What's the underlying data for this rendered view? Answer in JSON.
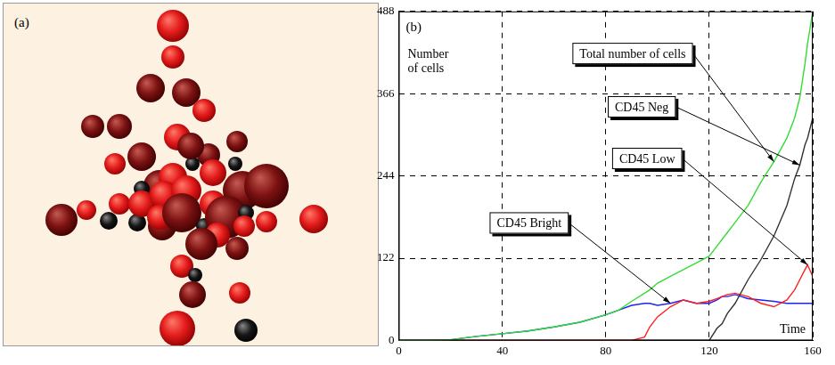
{
  "image_panel": {
    "label": "(a)"
  },
  "chart_data": {
    "type": "line",
    "label": "(b)",
    "xlabel": "Time",
    "ylabel": "Number of cells",
    "x": [
      0,
      10,
      20,
      30,
      40,
      50,
      60,
      70,
      80,
      85,
      90,
      95,
      97,
      100,
      105,
      110,
      115,
      120,
      123,
      125,
      127,
      130,
      135,
      140,
      145,
      150,
      153,
      155,
      157,
      158,
      160
    ],
    "series": [
      {
        "name": "Total number of cells",
        "color": "#33dd33",
        "values": [
          0,
          0,
          1,
          6,
          10,
          14,
          20,
          27,
          38,
          45,
          58,
          70,
          75,
          85,
          95,
          105,
          115,
          125,
          140,
          150,
          160,
          175,
          200,
          235,
          265,
          300,
          330,
          360,
          410,
          440,
          488
        ]
      },
      {
        "name": "CD45 Neg",
        "color": "#333333",
        "values": [
          0,
          0,
          0,
          0,
          0,
          0,
          0,
          0,
          0,
          0,
          0,
          0,
          0,
          0,
          0,
          0,
          0,
          0,
          18,
          25,
          40,
          55,
          90,
          120,
          155,
          200,
          240,
          260,
          290,
          300,
          330
        ]
      },
      {
        "name": "CD45 Low",
        "color": "#ff2020",
        "values": [
          0,
          0,
          0,
          0,
          0,
          0,
          0,
          0,
          0,
          0,
          0,
          5,
          20,
          35,
          50,
          60,
          55,
          58,
          62,
          65,
          68,
          70,
          65,
          55,
          50,
          60,
          75,
          90,
          105,
          112,
          95
        ]
      },
      {
        "name": "CD45 Bright",
        "color": "#2222ee",
        "values": [
          0,
          0,
          1,
          6,
          10,
          14,
          20,
          27,
          38,
          45,
          52,
          55,
          55,
          52,
          55,
          60,
          55,
          55,
          60,
          65,
          65,
          68,
          62,
          60,
          58,
          55,
          55,
          55,
          55,
          55,
          55
        ]
      }
    ],
    "xlim": [
      0,
      160
    ],
    "xticks": [
      0,
      40,
      80,
      120,
      160
    ],
    "ylim": [
      0,
      488
    ],
    "yticks": [
      0,
      122,
      244,
      366,
      488
    ],
    "grid": true
  }
}
